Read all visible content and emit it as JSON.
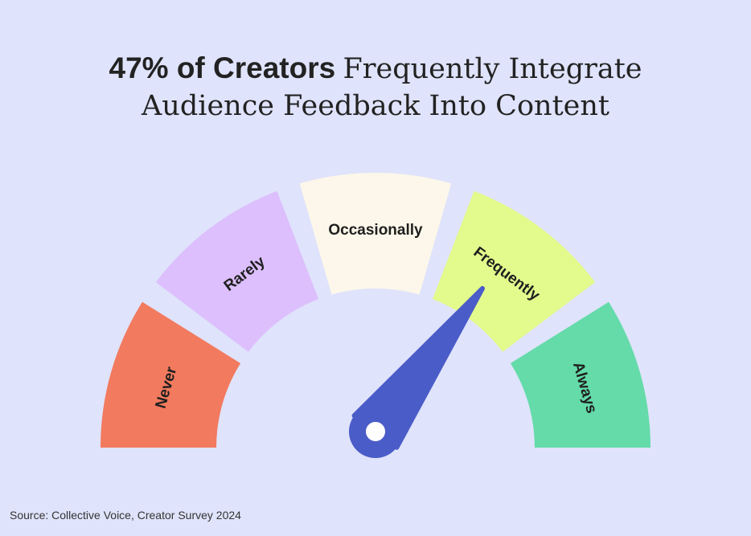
{
  "title": {
    "bold": "47% of Creators",
    "rest_line1": "Frequently Integrate",
    "rest_line2": "Audience Feedback Into Content"
  },
  "chart_data": {
    "type": "gauge",
    "segments": [
      {
        "label": "Never",
        "color": "#f27a5e"
      },
      {
        "label": "Rarely",
        "color": "#dcbffc"
      },
      {
        "label": "Occasionally",
        "color": "#fcf7ea"
      },
      {
        "label": "Frequently",
        "color": "#e2fb8c"
      },
      {
        "label": "Always",
        "color": "#64dba9"
      }
    ],
    "selected": "Frequently",
    "needle_color": "#4a5cc8"
  },
  "source": "Source: Collective Voice, Creator Survey 2024"
}
